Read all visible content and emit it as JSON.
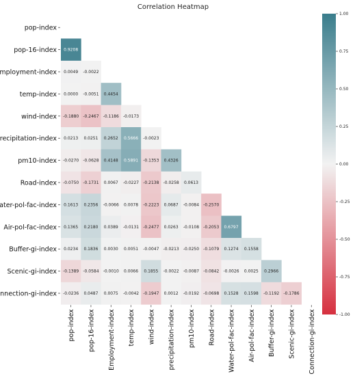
{
  "chart_data": {
    "type": "heatmap",
    "title": "Correlation Heatmap",
    "labels": [
      "pop-index",
      "pop-16-index",
      "Employment-index",
      "temp-index",
      "wind-index",
      "precipitation-index",
      "pm10-index",
      "Road-index",
      "Water-pol-fac-index",
      "Air-pol-fac-index",
      "Buffer-gi-index",
      "Scenic-gi-index",
      "Connection-gi-index"
    ],
    "lower_triangle": [
      [],
      [
        0.9208
      ],
      [
        0.0049,
        -0.0022
      ],
      [
        0.0,
        -0.0051,
        0.4454
      ],
      [
        -0.188,
        -0.2467,
        -0.1186,
        -0.0173
      ],
      [
        0.0213,
        0.0251,
        0.2652,
        0.5666,
        -0.0023
      ],
      [
        -0.027,
        -0.0628,
        0.4148,
        0.5891,
        -0.1353,
        0.4326
      ],
      [
        -0.075,
        -0.1731,
        0.0067,
        -0.0227,
        -0.2138,
        -0.0258,
        0.0613
      ],
      [
        0.1613,
        0.2356,
        -0.0066,
        0.0078,
        -0.2223,
        0.0687,
        -0.0084,
        -0.257
      ],
      [
        0.1365,
        0.218,
        0.0389,
        -0.0131,
        -0.2477,
        0.0263,
        -0.0108,
        -0.2053,
        0.6797
      ],
      [
        0.0234,
        0.1836,
        0.003,
        0.0051,
        -0.0047,
        -0.0213,
        -0.025,
        -0.1079,
        0.1274,
        0.1558
      ],
      [
        -0.1389,
        -0.0584,
        -0.001,
        0.0066,
        0.1855,
        -0.0022,
        -0.0087,
        -0.0842,
        -0.0026,
        0.0025,
        0.2966
      ],
      [
        -0.0236,
        0.0487,
        0.0075,
        -0.0042,
        -0.1947,
        0.0012,
        -0.0192,
        -0.0698,
        0.1528,
        0.1598,
        -0.1192,
        -0.1786
      ]
    ],
    "value_labels": [
      [],
      [
        "0.9208"
      ],
      [
        "0.0049",
        "-0.0022"
      ],
      [
        "0.0000",
        "-0.0051",
        "0.4454"
      ],
      [
        "-0.1880",
        "-0.2467",
        "-0.1186",
        "-0.0173"
      ],
      [
        "0.0213",
        "0.0251",
        "0.2652",
        "0.5666",
        "-0.0023"
      ],
      [
        "-0.0270",
        "-0.0628",
        "0.4148",
        "0.5891",
        "-0.1353",
        "0.4326"
      ],
      [
        "-0.0750",
        "-0.1731",
        "0.0067",
        "-0.0227",
        "-0.2138",
        "-0.0258",
        "0.0613"
      ],
      [
        "0.1613",
        "0.2356",
        "-0.0066",
        "0.0078",
        "-0.2223",
        "0.0687",
        "-0.0084",
        "-0.2570"
      ],
      [
        "0.1365",
        "0.2180",
        "0.0389",
        "-0.0131",
        "-0.2477",
        "0.0263",
        "-0.0108",
        "-0.2053",
        "0.6797"
      ],
      [
        "0.0234",
        "0.1836",
        "0.0030",
        "0.0051",
        "-0.0047",
        "-0.0213",
        "-0.0250",
        "-0.1079",
        "0.1274",
        "0.1558"
      ],
      [
        "-0.1389",
        "-0.0584",
        "-0.0010",
        "0.0066",
        "0.1855",
        "-0.0022",
        "-0.0087",
        "-0.0842",
        "-0.0026",
        "0.0025",
        "0.2966"
      ],
      [
        "-0.0236",
        "0.0487",
        "0.0075",
        "-0.0042",
        "-0.1947",
        "0.0012",
        "-0.0192",
        "-0.0698",
        "0.1528",
        "0.1598",
        "-0.1192",
        "-0.1786"
      ]
    ],
    "color_range": [
      -1.0,
      1.0
    ],
    "colorbar_ticks": [
      {
        "value": 1.0,
        "label": "1.00"
      },
      {
        "value": 0.75,
        "label": "0.75"
      },
      {
        "value": 0.5,
        "label": "0.50"
      },
      {
        "value": 0.25,
        "label": "0.25"
      },
      {
        "value": 0.0,
        "label": "0.00"
      },
      {
        "value": -0.25,
        "label": "-0.25"
      },
      {
        "value": -0.5,
        "label": "-0.50"
      },
      {
        "value": -0.75,
        "label": "-0.75"
      },
      {
        "value": -1.0,
        "label": "-1.00"
      }
    ],
    "colors": {
      "negative": "#d6303f",
      "neutral": "#f2f2f2",
      "positive": "#3a7d8c"
    },
    "legend_position": "right"
  }
}
